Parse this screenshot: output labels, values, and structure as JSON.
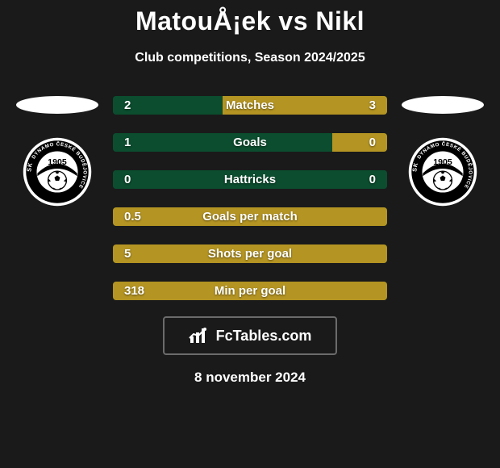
{
  "title": "MatouÅ¡ek vs Nikl",
  "subtitle": "Club competitions, Season 2024/2025",
  "date": "8 november 2024",
  "branding": {
    "text": "FcTables.com"
  },
  "colors": {
    "bar_green": "#0b4d2e",
    "bar_amber": "#b49422",
    "badge_black": "#000000",
    "badge_white": "#ffffff",
    "badge_ring_text": "#ffffff"
  },
  "badge": {
    "year": "1905",
    "ring_text_left": "SK",
    "ring_text_right": "DYNAMO ČESKÉ BUDĚJOVICE"
  },
  "stats": [
    {
      "label": "Matches",
      "left_value": "2",
      "right_value": "3",
      "left_fill_pct": 40,
      "right_fill_pct": 60,
      "left_color": "#0b4d2e",
      "right_color": "#b49422"
    },
    {
      "label": "Goals",
      "left_value": "1",
      "right_value": "0",
      "left_fill_pct": 80,
      "right_fill_pct": 20,
      "left_color": "#0b4d2e",
      "right_color": "#b49422"
    },
    {
      "label": "Hattricks",
      "left_value": "0",
      "right_value": "0",
      "left_fill_pct": 100,
      "right_fill_pct": 0,
      "left_color": "#0b4d2e",
      "right_color": "#b49422"
    },
    {
      "label": "Goals per match",
      "left_value": "0.5",
      "right_value": "",
      "left_fill_pct": 100,
      "right_fill_pct": 0,
      "left_color": "#b49422",
      "right_color": "#0b4d2e"
    },
    {
      "label": "Shots per goal",
      "left_value": "5",
      "right_value": "",
      "left_fill_pct": 100,
      "right_fill_pct": 0,
      "left_color": "#b49422",
      "right_color": "#0b4d2e"
    },
    {
      "label": "Min per goal",
      "left_value": "318",
      "right_value": "",
      "left_fill_pct": 100,
      "right_fill_pct": 0,
      "left_color": "#b49422",
      "right_color": "#0b4d2e"
    }
  ]
}
